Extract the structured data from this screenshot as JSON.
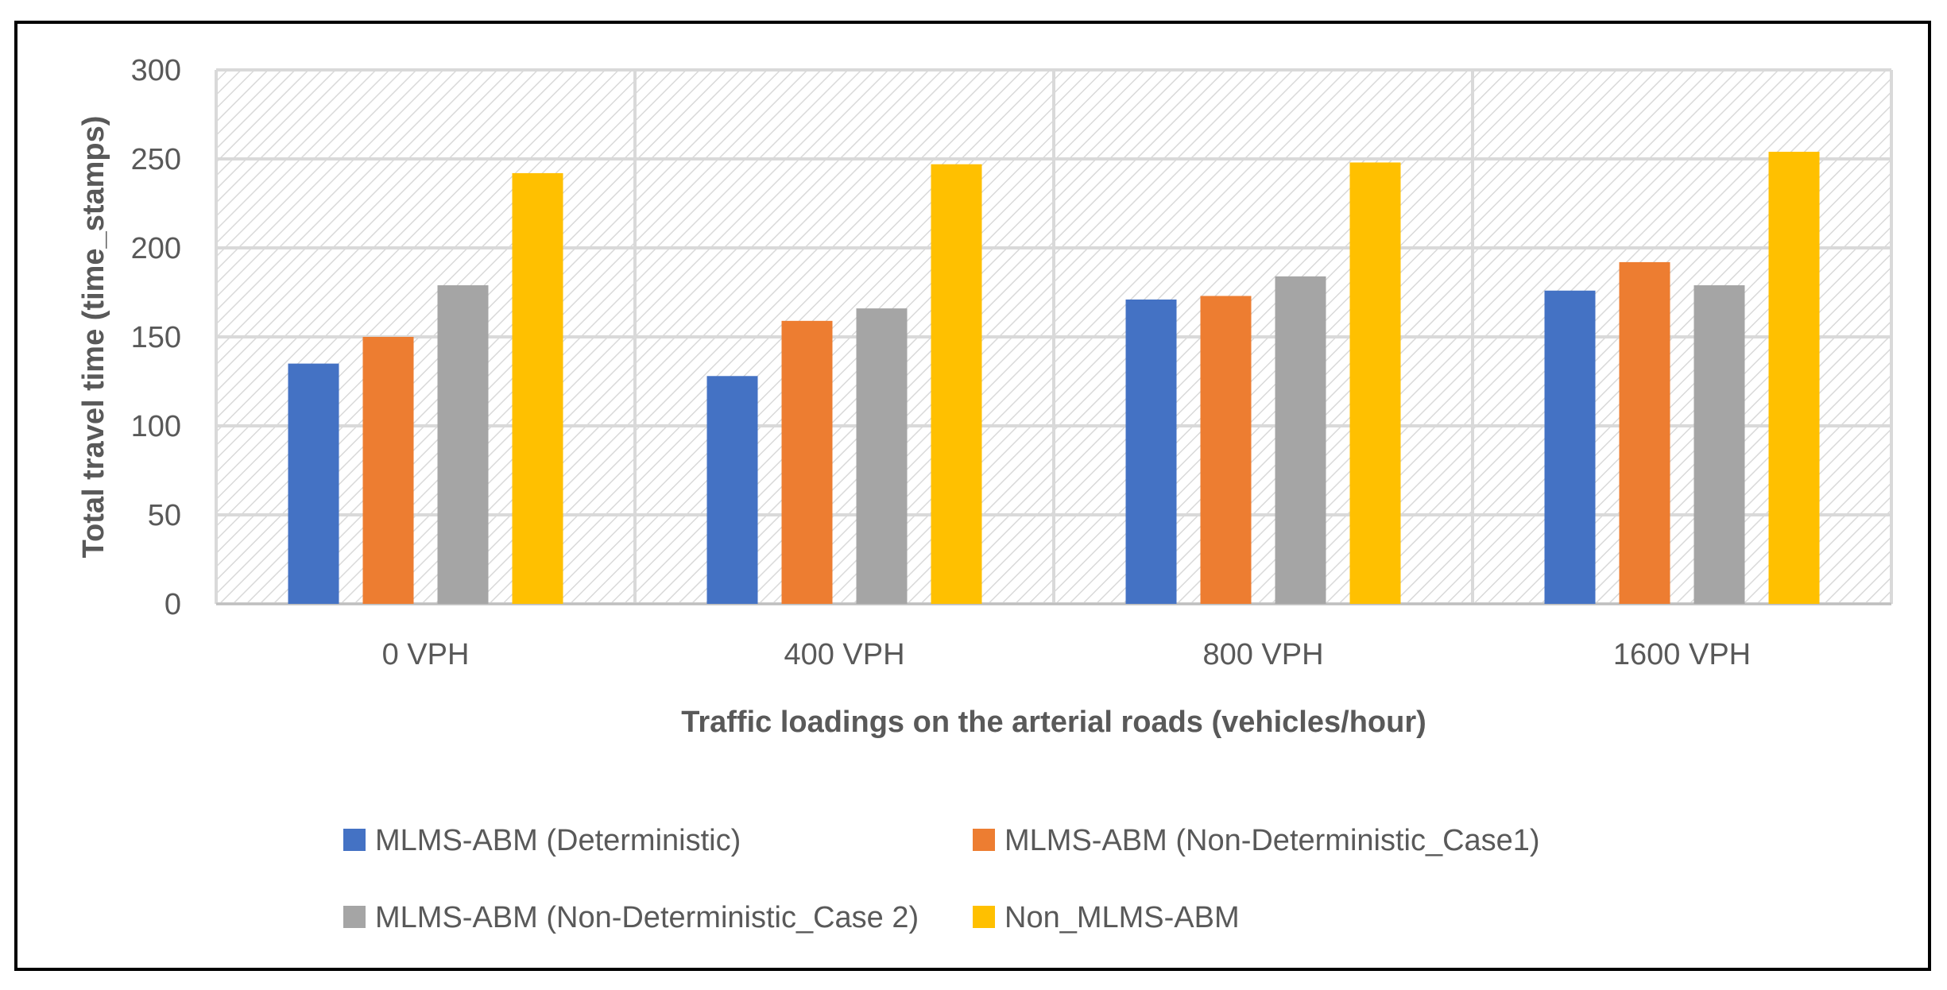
{
  "chart_data": {
    "type": "bar",
    "categories": [
      "0 VPH",
      "400 VPH",
      "800 VPH",
      "1600 VPH"
    ],
    "series": [
      {
        "name": "MLMS-ABM (Deterministic)",
        "color": "#4472C4",
        "values": [
          135,
          128,
          171,
          176
        ]
      },
      {
        "name": "MLMS-ABM (Non-Deterministic_Case1)",
        "color": "#ED7D31",
        "values": [
          150,
          159,
          173,
          192
        ]
      },
      {
        "name": "MLMS-ABM (Non-Deterministic_Case 2)",
        "color": "#A5A5A5",
        "values": [
          179,
          166,
          184,
          179
        ]
      },
      {
        "name": "Non_MLMS-ABM",
        "color": "#FFC000",
        "values": [
          242,
          247,
          248,
          254
        ]
      }
    ],
    "ylim": [
      0,
      300
    ],
    "yticks": [
      0,
      50,
      100,
      150,
      200,
      250,
      300
    ],
    "xlabel": "Traffic loadings on the arterial roads (vehicles/hour)",
    "ylabel": "Total travel time  (time_stamps)",
    "grid": true,
    "legend_position": "bottom"
  }
}
